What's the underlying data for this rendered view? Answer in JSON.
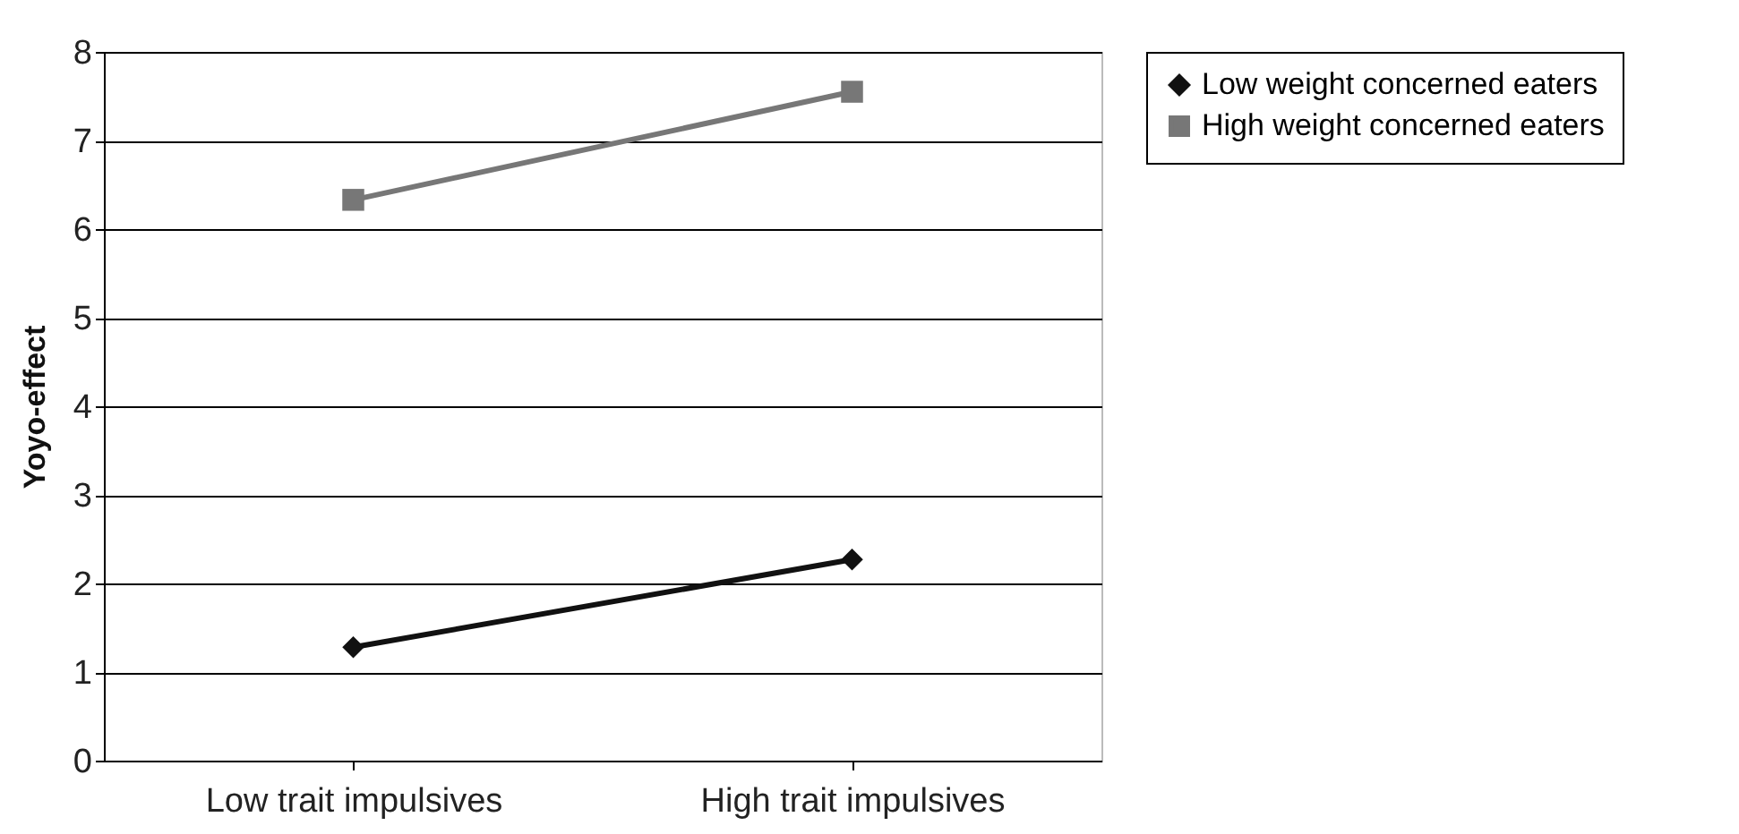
{
  "chart_data": {
    "type": "line",
    "ylabel": "Yoyo-effect",
    "categories": [
      "Low trait impulsives",
      "High trait impulsives"
    ],
    "series": [
      {
        "name": "Low weight concerned eaters",
        "color": "#111111",
        "marker": "diamond",
        "values": [
          1.28,
          2.27
        ]
      },
      {
        "name": "High weight concerned eaters",
        "color": "#777777",
        "marker": "square",
        "values": [
          6.33,
          7.55
        ]
      }
    ],
    "ylim": [
      0,
      8
    ],
    "yticks": [
      0,
      1,
      2,
      3,
      4,
      5,
      6,
      7,
      8
    ],
    "grid": "y",
    "legend": "right",
    "line_style": "solid"
  }
}
